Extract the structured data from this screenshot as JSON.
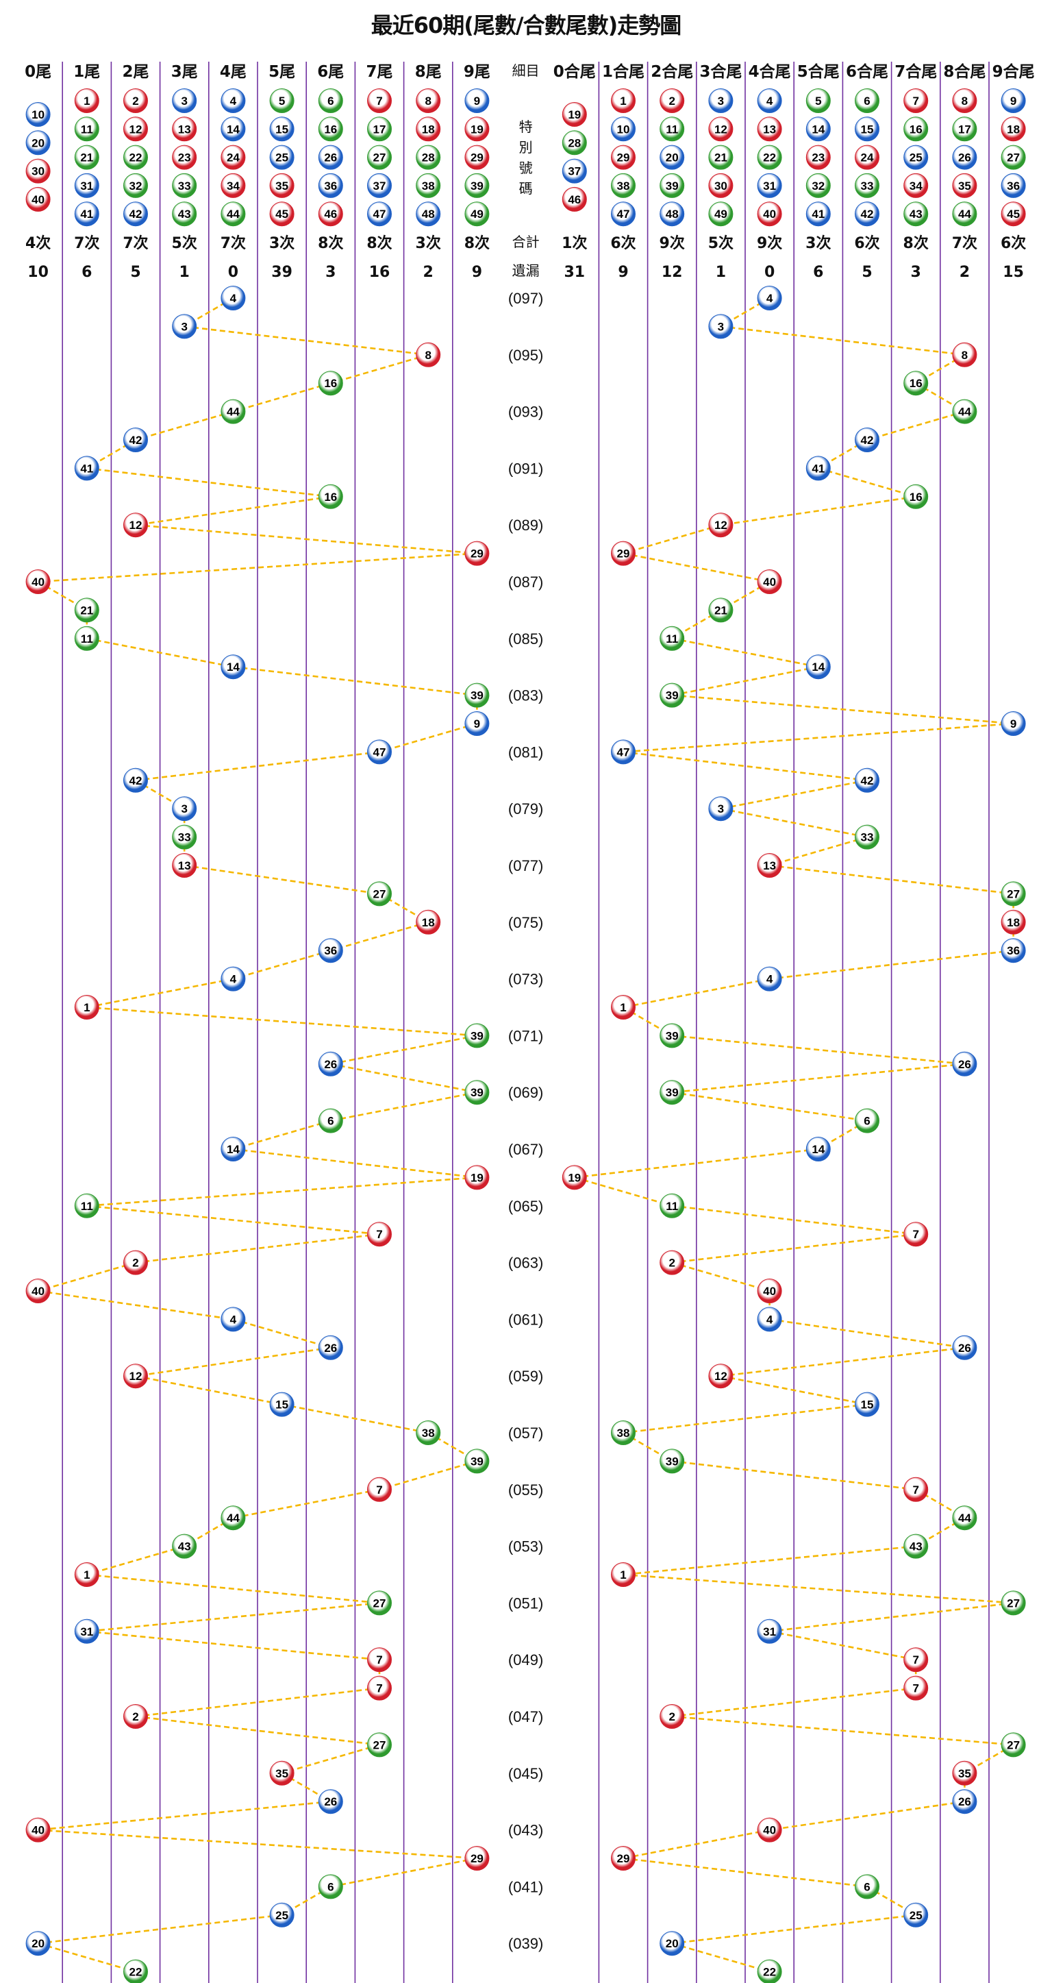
{
  "title": "最近60期(尾數/合數尾數)走勢圖",
  "left_headers": [
    "0尾",
    "1尾",
    "2尾",
    "3尾",
    "4尾",
    "5尾",
    "6尾",
    "7尾",
    "8尾",
    "9尾"
  ],
  "right_headers": [
    "0合尾",
    "1合尾",
    "2合尾",
    "3合尾",
    "4合尾",
    "5合尾",
    "6合尾",
    "7合尾",
    "8合尾",
    "9合尾"
  ],
  "middle": {
    "header": "細目",
    "special_label": [
      "特",
      "別",
      "號",
      "碼"
    ],
    "count_label": "合計",
    "missing_label": "遺漏"
  },
  "left_groups": [
    [
      10,
      20,
      30,
      40
    ],
    [
      1,
      11,
      21,
      31,
      41
    ],
    [
      2,
      12,
      22,
      32,
      42
    ],
    [
      3,
      13,
      23,
      33,
      43
    ],
    [
      4,
      14,
      24,
      34,
      44
    ],
    [
      5,
      15,
      25,
      35,
      45
    ],
    [
      6,
      16,
      26,
      36,
      46
    ],
    [
      7,
      17,
      27,
      37,
      47
    ],
    [
      8,
      18,
      28,
      38,
      48
    ],
    [
      9,
      19,
      29,
      39,
      49
    ]
  ],
  "right_groups": [
    [
      19,
      28,
      37,
      46
    ],
    [
      1,
      10,
      29,
      38,
      47
    ],
    [
      2,
      11,
      20,
      39,
      48
    ],
    [
      3,
      12,
      21,
      30,
      49
    ],
    [
      4,
      13,
      22,
      31,
      40
    ],
    [
      5,
      14,
      23,
      32,
      41
    ],
    [
      6,
      15,
      24,
      33,
      42
    ],
    [
      7,
      16,
      25,
      34,
      43
    ],
    [
      8,
      17,
      26,
      35,
      44
    ],
    [
      9,
      18,
      27,
      36,
      45
    ]
  ],
  "left_counts": [
    "4次",
    "7次",
    "7次",
    "5次",
    "7次",
    "3次",
    "8次",
    "8次",
    "3次",
    "8次"
  ],
  "left_missing": [
    "10",
    "6",
    "5",
    "1",
    "0",
    "39",
    "3",
    "16",
    "2",
    "9"
  ],
  "right_counts": [
    "1次",
    "6次",
    "9次",
    "5次",
    "9次",
    "3次",
    "6次",
    "8次",
    "7次",
    "6次"
  ],
  "right_missing": [
    "31",
    "9",
    "12",
    "1",
    "0",
    "6",
    "5",
    "3",
    "2",
    "15"
  ],
  "period_labels": [
    "(097)",
    "(095)",
    "(093)",
    "(091)",
    "(089)",
    "(087)",
    "(085)",
    "(083)",
    "(081)",
    "(079)",
    "(077)",
    "(075)",
    "(073)",
    "(071)",
    "(069)",
    "(067)",
    "(065)",
    "(063)",
    "(061)",
    "(059)",
    "(057)",
    "(055)",
    "(053)",
    "(051)",
    "(049)",
    "(047)",
    "(045)",
    "(043)",
    "(041)",
    "(039)"
  ],
  "chart_data": {
    "type": "line",
    "title": "最近60期(尾數/合數尾數)走勢圖",
    "numbers": [
      4,
      3,
      8,
      16,
      44,
      42,
      41,
      16,
      12,
      29,
      40,
      21,
      11,
      14,
      39,
      9,
      47,
      42,
      3,
      33,
      13,
      27,
      18,
      36,
      4,
      1,
      39,
      26,
      39,
      6,
      14,
      19,
      11,
      7,
      2,
      40,
      4,
      26,
      12,
      15,
      38,
      39,
      7,
      44,
      43,
      1,
      27,
      31,
      7,
      7,
      2,
      27,
      35,
      26,
      40,
      29,
      6,
      25,
      20,
      22
    ]
  },
  "ball_color_groups": {
    "red": [
      1,
      2,
      7,
      8,
      12,
      13,
      18,
      19,
      23,
      24,
      29,
      30,
      34,
      35,
      40,
      45,
      46
    ],
    "blue": [
      3,
      4,
      9,
      10,
      14,
      15,
      20,
      25,
      26,
      31,
      36,
      37,
      41,
      42,
      47,
      48
    ],
    "green": [
      5,
      6,
      11,
      16,
      17,
      21,
      22,
      27,
      28,
      32,
      33,
      38,
      39,
      43,
      44,
      49
    ]
  },
  "colors": {
    "red": "#d11f2b",
    "blue": "#1f5fc4",
    "green": "#2f9a2f",
    "line": "#f5b700",
    "divider": "#7030a0"
  }
}
